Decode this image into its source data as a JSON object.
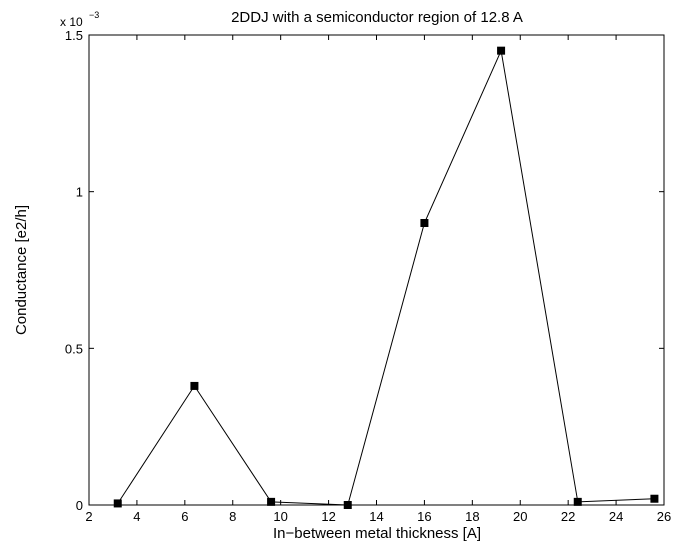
{
  "chart_data": {
    "type": "line",
    "title": "2DDJ with a semiconductor region of 12.8 A",
    "xlabel": "In−between metal thickness [A]",
    "ylabel": "Conductance [e2/h]",
    "y_multiplier_base": "x 10",
    "y_multiplier_exponent": "−3",
    "xlim": [
      2,
      26
    ],
    "ylim": [
      0,
      0.0015
    ],
    "x_ticks": [
      2,
      4,
      6,
      8,
      10,
      12,
      14,
      16,
      18,
      20,
      22,
      24,
      26
    ],
    "x_tick_labels": [
      "2",
      "4",
      "6",
      "8",
      "10",
      "12",
      "14",
      "16",
      "18",
      "20",
      "22",
      "24",
      "26"
    ],
    "y_ticks": [
      0,
      0.0005,
      0.001,
      0.0015
    ],
    "y_tick_labels": [
      "0",
      "0.5",
      "1",
      "1.5"
    ],
    "grid": false,
    "marker": "square",
    "line_color": "#000000",
    "marker_color": "#000000",
    "series": [
      {
        "x": [
          3.2,
          6.4,
          9.6,
          12.8,
          16.0,
          19.2,
          22.4,
          25.6
        ],
        "y": [
          5e-06,
          0.00038,
          1e-05,
          0.0,
          0.0009,
          0.00145,
          1e-05,
          2e-05
        ]
      }
    ]
  }
}
